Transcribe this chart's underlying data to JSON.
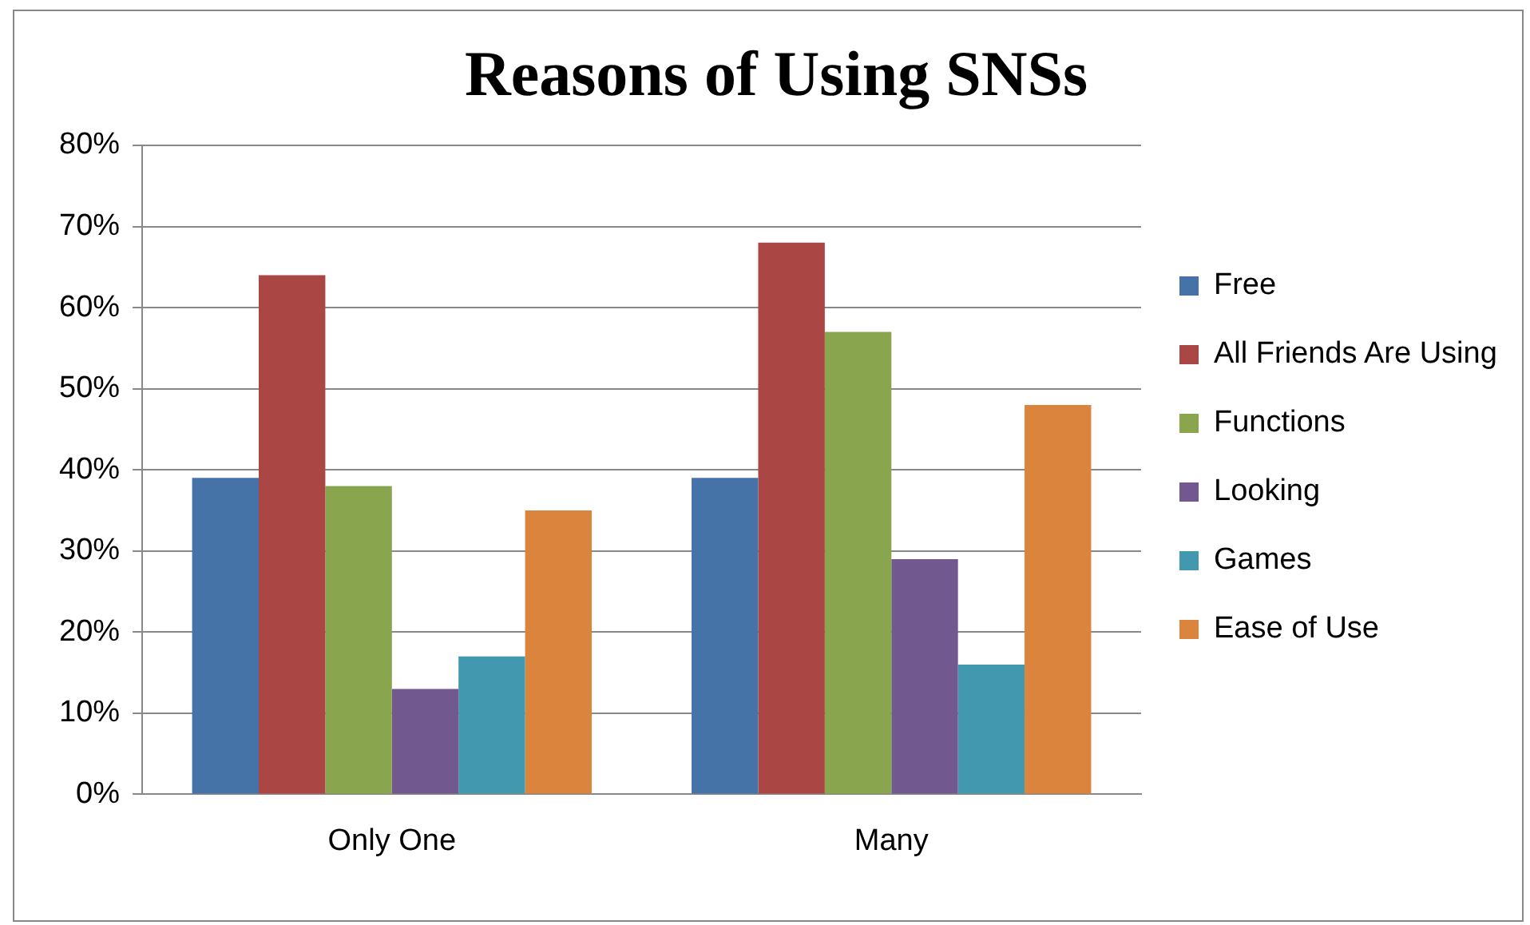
{
  "chart_data": {
    "type": "bar",
    "title": "Reasons of Using SNSs",
    "categories": [
      "Only One",
      "Many"
    ],
    "series": [
      {
        "name": "Free",
        "color": "#4572a7",
        "values": [
          39,
          39
        ]
      },
      {
        "name": "All Friends Are Using",
        "color": "#aa4643",
        "values": [
          64,
          68
        ]
      },
      {
        "name": "Functions",
        "color": "#89a54e",
        "values": [
          38,
          57
        ]
      },
      {
        "name": "Looking",
        "color": "#71588f",
        "values": [
          13,
          29
        ]
      },
      {
        "name": "Games",
        "color": "#4198af",
        "values": [
          17,
          16
        ]
      },
      {
        "name": "Ease of Use",
        "color": "#db843d",
        "values": [
          35,
          48
        ]
      }
    ],
    "ylim": [
      0,
      80
    ],
    "yticks": [
      {
        "value": 0,
        "label": "0%"
      },
      {
        "value": 10,
        "label": "10%"
      },
      {
        "value": 20,
        "label": "20%"
      },
      {
        "value": 30,
        "label": "30%"
      },
      {
        "value": 40,
        "label": "40%"
      },
      {
        "value": 50,
        "label": "50%"
      },
      {
        "value": 60,
        "label": "60%"
      },
      {
        "value": 70,
        "label": "70%"
      },
      {
        "value": 80,
        "label": "80%"
      }
    ],
    "grid": "y",
    "legend": "right"
  }
}
